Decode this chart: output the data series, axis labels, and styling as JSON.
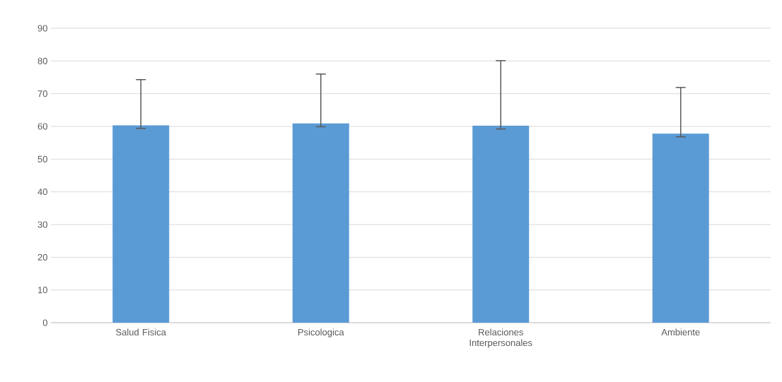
{
  "chart_data": {
    "type": "bar",
    "categories": [
      "Salud Fisica",
      "Psicologica",
      "Relaciones Interpersonales",
      "Ambiente"
    ],
    "values": [
      60.3,
      60.9,
      60.2,
      57.8
    ],
    "errors": [
      [
        59.4,
        74.3
      ],
      [
        59.9,
        76.0
      ],
      [
        59.2,
        80.1
      ],
      [
        56.8,
        71.9
      ]
    ],
    "color": "#5b9bd5",
    "ylim": [
      0,
      90
    ],
    "yticks": [
      0,
      10,
      20,
      30,
      40,
      50,
      60,
      70,
      80,
      90
    ],
    "grid": "y"
  }
}
